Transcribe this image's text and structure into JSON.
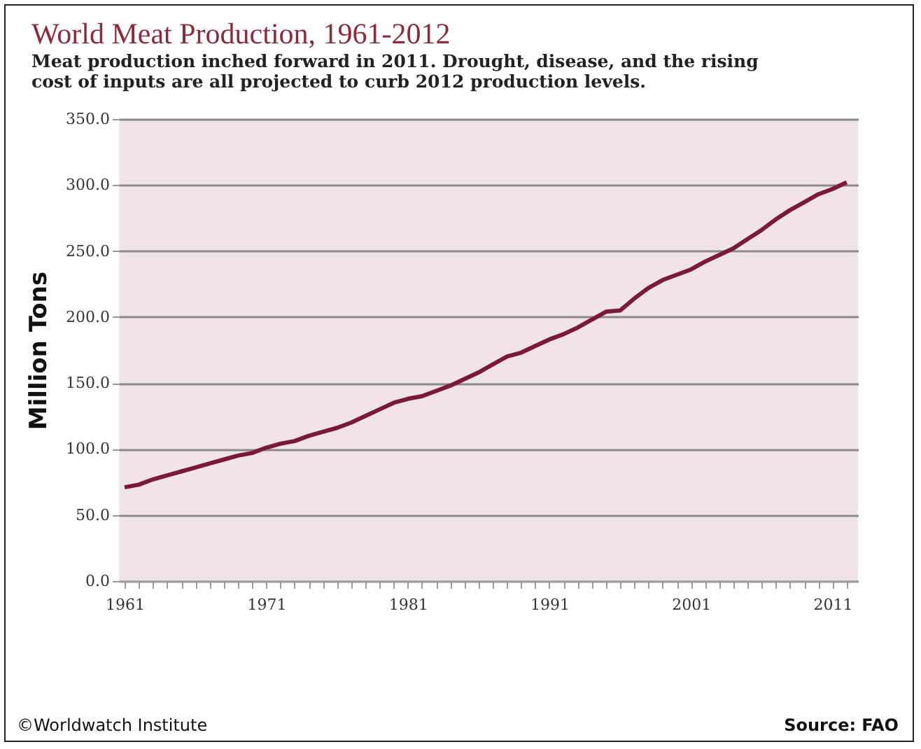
{
  "chart_data": {
    "type": "line",
    "title": "World Meat Production, 1961-2012",
    "subtitle": "Meat production inched forward in 2011. Drought,  disease, and the rising cost of inputs are all projected to curb 2012 production levels.",
    "ylabel": "Million Tons",
    "x": [
      1961,
      1962,
      1963,
      1964,
      1965,
      1966,
      1967,
      1968,
      1969,
      1970,
      1971,
      1972,
      1973,
      1974,
      1975,
      1976,
      1977,
      1978,
      1979,
      1980,
      1981,
      1982,
      1983,
      1984,
      1985,
      1986,
      1987,
      1988,
      1989,
      1990,
      1991,
      1992,
      1993,
      1994,
      1995,
      1996,
      1997,
      1998,
      1999,
      2000,
      2001,
      2002,
      2003,
      2004,
      2005,
      2006,
      2007,
      2008,
      2009,
      2010,
      2011,
      2012
    ],
    "series": [
      {
        "color": "#7a1a38",
        "values": [
          71,
          73,
          77,
          80,
          83,
          86,
          89,
          92,
          95,
          97,
          101,
          104,
          106,
          110,
          113,
          116,
          120,
          125,
          130,
          135,
          138,
          140,
          144,
          148,
          153,
          158,
          164,
          170,
          173,
          178,
          183,
          187,
          192,
          198,
          204,
          205,
          214,
          222,
          228,
          232,
          236,
          242,
          247,
          252,
          259,
          266,
          274,
          281,
          287,
          293,
          297,
          302
        ]
      }
    ],
    "xlim": [
      1960.6,
      2012.8
    ],
    "xticks": [
      1961,
      {
        "value": 1962,
        "label": null
      },
      {
        "value": 1963,
        "label": null
      },
      {
        "value": 1964,
        "label": null
      },
      {
        "value": 1965,
        "label": null
      },
      {
        "value": 1966,
        "label": null
      },
      {
        "value": 1967,
        "label": null
      },
      {
        "value": 1968,
        "label": null
      },
      {
        "value": 1969,
        "label": null
      },
      {
        "value": 1970,
        "label": null
      },
      1971,
      {
        "value": 1972,
        "label": null
      },
      {
        "value": 1973,
        "label": null
      },
      {
        "value": 1974,
        "label": null
      },
      {
        "value": 1975,
        "label": null
      },
      {
        "value": 1976,
        "label": null
      },
      {
        "value": 1977,
        "label": null
      },
      {
        "value": 1978,
        "label": null
      },
      {
        "value": 1979,
        "label": null
      },
      {
        "value": 1980,
        "label": null
      },
      1981,
      {
        "value": 1982,
        "label": null
      },
      {
        "value": 1983,
        "label": null
      },
      {
        "value": 1984,
        "label": null
      },
      {
        "value": 1985,
        "label": null
      },
      {
        "value": 1986,
        "label": null
      },
      {
        "value": 1987,
        "label": null
      },
      {
        "value": 1988,
        "label": null
      },
      {
        "value": 1989,
        "label": null
      },
      {
        "value": 1990,
        "label": null
      },
      1991,
      {
        "value": 1992,
        "label": null
      },
      {
        "value": 1993,
        "label": null
      },
      {
        "value": 1994,
        "label": null
      },
      {
        "value": 1995,
        "label": null
      },
      {
        "value": 1996,
        "label": null
      },
      {
        "value": 1997,
        "label": null
      },
      {
        "value": 1998,
        "label": null
      },
      {
        "value": 1999,
        "label": null
      },
      {
        "value": 2000,
        "label": null
      },
      2001,
      {
        "value": 2002,
        "label": null
      },
      {
        "value": 2003,
        "label": null
      },
      {
        "value": 2004,
        "label": null
      },
      {
        "value": 2005,
        "label": null
      },
      {
        "value": 2006,
        "label": null
      },
      {
        "value": 2007,
        "label": null
      },
      {
        "value": 2008,
        "label": null
      },
      {
        "value": 2009,
        "label": null
      },
      {
        "value": 2010,
        "label": null
      },
      2011,
      {
        "value": 2012,
        "label": null
      }
    ],
    "ylim": [
      0,
      350
    ],
    "yticks": [
      {
        "value": 0,
        "label": "0.0"
      },
      {
        "value": 50,
        "label": "50.0"
      },
      {
        "value": 100,
        "label": "100.0"
      },
      {
        "value": 150,
        "label": "150.0"
      },
      {
        "value": 200,
        "label": "200.0"
      },
      {
        "value": 250,
        "label": "250.0"
      },
      {
        "value": 300,
        "label": "300.0"
      },
      {
        "value": 350,
        "label": "350.0"
      }
    ],
    "grid": "y",
    "marker": "none",
    "line_style": "solid",
    "annotations": [
      "©Worldwatch Institute",
      "Source: FAO"
    ]
  }
}
